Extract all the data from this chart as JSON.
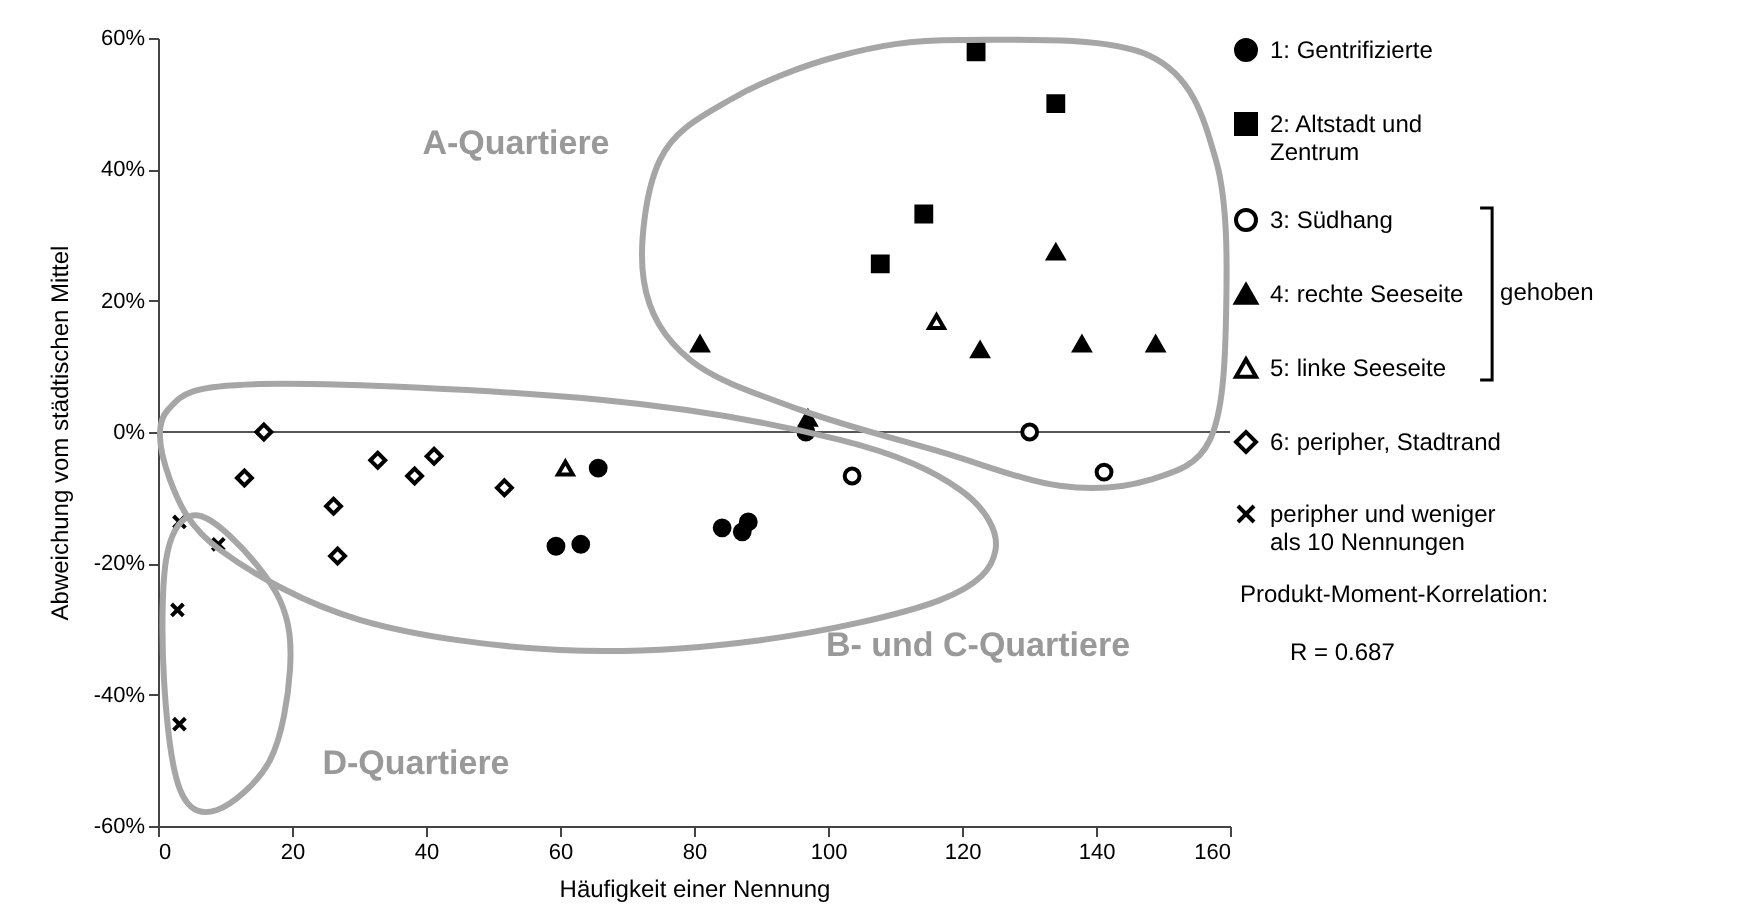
{
  "chart_data": {
    "type": "scatter",
    "xlabel": "Häufigkeit einer Nennung",
    "ylabel": "Abweichung vom städtischen Mittel",
    "xlim": [
      0,
      160
    ],
    "xticks": [
      0,
      20,
      40,
      60,
      80,
      100,
      120,
      140,
      160
    ],
    "ylim": [
      -60,
      60
    ],
    "yticks": [
      {
        "value": -60,
        "label": "-60%"
      },
      {
        "value": -40,
        "label": "-40%"
      },
      {
        "value": -20,
        "label": "-20%"
      },
      {
        "value": 0,
        "label": "0%"
      },
      {
        "value": 20,
        "label": "20%"
      },
      {
        "value": 40,
        "label": "40%"
      },
      {
        "value": 60,
        "label": "60%"
      }
    ],
    "grid": false,
    "legend": "right",
    "series": [
      {
        "name": "1: Gentrifizierte",
        "color": "#000000",
        "marker": "circle",
        "x": [
          96.7,
          65.7,
          59.4,
          63.1,
          84.2,
          87.2,
          88.1
        ],
        "values": [
          0,
          -5.5,
          -17.4,
          -17.1,
          -14.6,
          -15.2,
          -13.7
        ]
      },
      {
        "name": "2: Altstadt und Zentrum",
        "color": "#000000",
        "marker": "square",
        "x": [
          122.1,
          134,
          114.3,
          107.8
        ],
        "values": [
          57.9,
          50,
          33.2,
          25.6
        ]
      },
      {
        "name": "3: Südhang",
        "color": "#000000",
        "marker": "circle-open",
        "x": [
          130.1,
          141.2,
          103.6
        ],
        "values": [
          0,
          -6.1,
          -6.7
        ]
      },
      {
        "name": "4: rechte Seeseite",
        "color": "#000000",
        "marker": "triangle",
        "x": [
          80.9,
          97,
          122.7,
          134,
          137.9,
          148.9
        ],
        "values": [
          13.4,
          2.1,
          12.5,
          27.4,
          13.4,
          13.4
        ]
      },
      {
        "name": "5: linke Seeseite",
        "color": "#000000",
        "marker": "triangle-open",
        "x": [
          116.2,
          60.8
        ],
        "values": [
          16.8,
          -5.5
        ]
      },
      {
        "name": "6: peripher, Stadtrand",
        "color": "#000000",
        "marker": "diamond-open",
        "x": [
          15.8,
          12.9,
          26.2,
          26.8,
          32.8,
          38.3,
          41.2,
          51.7
        ],
        "values": [
          0,
          -7,
          -11.3,
          -18.9,
          -4.3,
          -6.7,
          -3.7,
          -8.5
        ]
      },
      {
        "name": "peripher und weniger als 10 Nennungen",
        "color": "#000000",
        "marker": "cross",
        "x": [
          3.2,
          9,
          2.9,
          3.2
        ],
        "values": [
          -13.7,
          -17.1,
          -27.1,
          -44.5
        ]
      }
    ],
    "ref_lines": [
      {
        "axis": "y",
        "value": 0,
        "color": "#555555"
      }
    ],
    "annotations": [
      "A-Quartiere",
      "B- und C-Quartiere",
      "D-Quartiere",
      "gehoben",
      "Produkt-Moment-Korrelation:",
      "R = 0.687"
    ]
  }
}
